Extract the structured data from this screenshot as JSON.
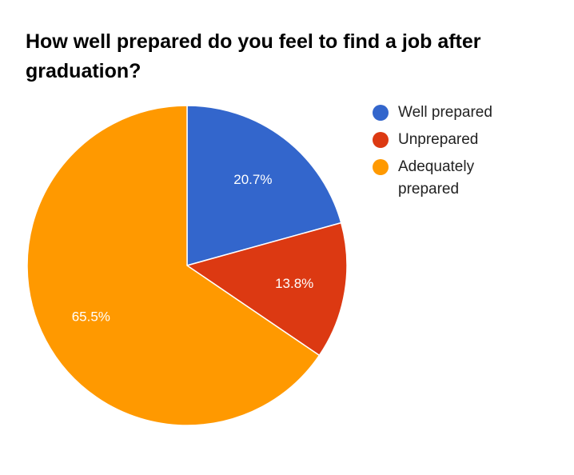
{
  "chart_data": {
    "type": "pie",
    "title": "How well prepared do you feel to find a job after graduation?",
    "legend_position": "right",
    "slices": [
      {
        "label": "Well prepared",
        "value": 20.7,
        "display": "20.7%",
        "color": "#3366cc"
      },
      {
        "label": "Unprepared",
        "value": 13.8,
        "display": "13.8%",
        "color": "#dc3912"
      },
      {
        "label": "Adequately prepared",
        "value": 65.5,
        "display": "65.5%",
        "color": "#ff9900"
      }
    ]
  }
}
